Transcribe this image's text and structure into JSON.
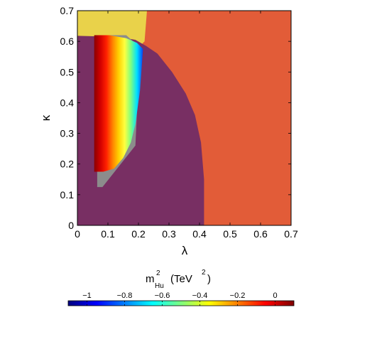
{
  "chart_data": {
    "type": "heatmap",
    "xlabel": "λ",
    "ylabel": "κ",
    "xlim": [
      0,
      0.7
    ],
    "ylim": [
      0,
      0.7
    ],
    "x_ticks": [
      0,
      0.1,
      0.2,
      0.3,
      0.4,
      0.5,
      0.6,
      0.7
    ],
    "y_ticks": [
      0,
      0.1,
      0.2,
      0.3,
      0.4,
      0.5,
      0.6,
      0.7
    ],
    "x_tick_labels": [
      "0",
      "0.1",
      "0.2",
      "0.3",
      "0.4",
      "0.5",
      "0.6",
      "0.7"
    ],
    "y_tick_labels": [
      "0",
      "0.1",
      "0.2",
      "0.3",
      "0.4",
      "0.5",
      "0.6",
      "0.7"
    ],
    "grid": false,
    "regions": [
      {
        "color": "#e25c38",
        "polygon": [
          [
            0,
            0.7
          ],
          [
            0.7,
            0.7
          ],
          [
            0.7,
            0
          ],
          [
            0,
            0
          ]
        ]
      },
      {
        "color": "#e9d24a",
        "polygon": [
          [
            0,
            0.7
          ],
          [
            0.228,
            0.7
          ],
          [
            0.22,
            0.6
          ],
          [
            0.19,
            0.57
          ],
          [
            0,
            0.615
          ]
        ]
      },
      {
        "color": "#782f63",
        "polygon": [
          [
            0,
            0
          ],
          [
            0.415,
            0
          ],
          [
            0.415,
            0.15
          ],
          [
            0.405,
            0.27
          ],
          [
            0.385,
            0.36
          ],
          [
            0.355,
            0.43
          ],
          [
            0.31,
            0.5
          ],
          [
            0.262,
            0.56
          ],
          [
            0.225,
            0.585
          ],
          [
            0.19,
            0.605
          ],
          [
            0.13,
            0.615
          ],
          [
            0,
            0.618
          ]
        ]
      },
      {
        "color": "#8c8c8c",
        "polygon": [
          [
            0.065,
            0.62
          ],
          [
            0.065,
            0.125
          ],
          [
            0.082,
            0.125
          ],
          [
            0.19,
            0.26
          ],
          [
            0.205,
            0.58
          ],
          [
            0.16,
            0.62
          ]
        ]
      }
    ],
    "colored_band": {
      "description": "m²Hu values across the allowed region",
      "x_range": [
        0.055,
        0.235
      ],
      "vertices": [
        [
          0.055,
          0.62
        ],
        [
          0.105,
          0.62
        ],
        [
          0.16,
          0.61
        ],
        [
          0.195,
          0.595
        ],
        [
          0.215,
          0.575
        ],
        [
          0.205,
          0.44
        ],
        [
          0.19,
          0.33
        ],
        [
          0.175,
          0.27
        ],
        [
          0.15,
          0.22
        ],
        [
          0.12,
          0.185
        ],
        [
          0.085,
          0.175
        ],
        [
          0.055,
          0.175
        ]
      ]
    },
    "colorbar": {
      "title_main": "m",
      "title_sup": "2",
      "title_sub": "Hu",
      "title_unit_pre": "(TeV",
      "title_unit_sup": "2",
      "title_unit_post": ")",
      "min": -1.1,
      "max": 0.1,
      "ticks": [
        -1,
        -0.8,
        -0.6,
        -0.4,
        -0.2,
        0
      ],
      "tick_labels": [
        "−1",
        "−0.8",
        "−0.6",
        "−0.4",
        "−0.2",
        "0"
      ],
      "colormap": [
        "#00007f",
        "#0000ff",
        "#007fff",
        "#00ffff",
        "#7fff7f",
        "#ffff00",
        "#ff7f00",
        "#ff0000",
        "#7f0000"
      ]
    }
  }
}
